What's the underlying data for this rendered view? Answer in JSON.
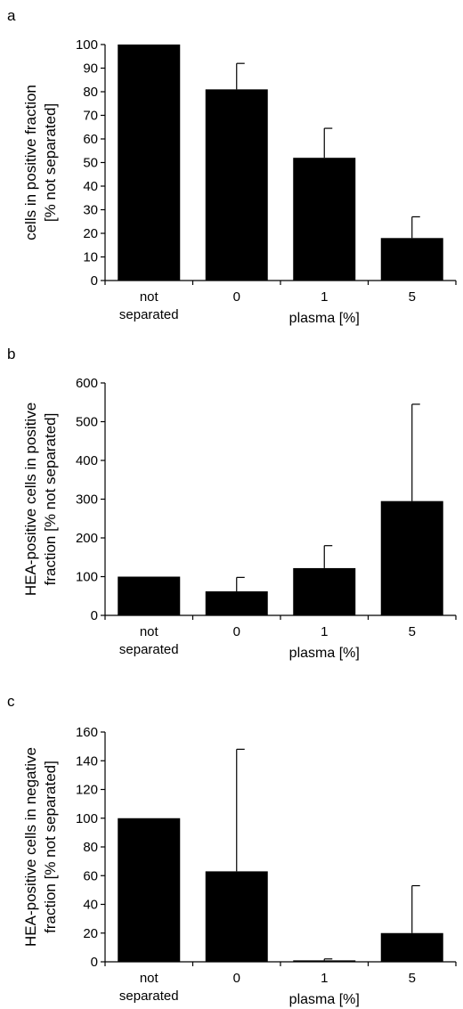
{
  "chart_data": [
    {
      "panel_label": "a",
      "type": "bar",
      "categories": [
        "not\nseparated",
        "0",
        "1",
        "5"
      ],
      "values": [
        100,
        81,
        52,
        18
      ],
      "error_upper": [
        100,
        92,
        64.5,
        27
      ],
      "ylabel": "cells in positive fraction\n[% not separated]",
      "xlabel": "plasma [%]",
      "ylim": [
        0,
        100
      ],
      "yticks": [
        0,
        10,
        20,
        30,
        40,
        50,
        60,
        70,
        80,
        90,
        100
      ],
      "bar_color": "#000000",
      "grid": false,
      "legend": "none"
    },
    {
      "panel_label": "b",
      "type": "bar",
      "categories": [
        "not\nseparated",
        "0",
        "1",
        "5"
      ],
      "values": [
        100,
        62,
        122,
        295
      ],
      "error_upper": [
        100,
        98,
        180,
        545
      ],
      "ylabel": "HEA-positive cells in positive\nfraction [% not separated]",
      "xlabel": "plasma [%]",
      "ylim": [
        0,
        600
      ],
      "yticks": [
        0,
        100,
        200,
        300,
        400,
        500,
        600
      ],
      "bar_color": "#000000",
      "grid": false,
      "legend": "none"
    },
    {
      "panel_label": "c",
      "type": "bar",
      "categories": [
        "not\nseparated",
        "0",
        "1",
        "5"
      ],
      "values": [
        100,
        63,
        1,
        20
      ],
      "error_upper": [
        100,
        148,
        2,
        53
      ],
      "ylabel": "HEA-positive cells in negative\nfraction [% not separated]",
      "xlabel": "plasma [%]",
      "ylim": [
        0,
        160
      ],
      "yticks": [
        0,
        20,
        40,
        60,
        80,
        100,
        120,
        140,
        160
      ],
      "bar_color": "#000000",
      "grid": false,
      "legend": "none"
    }
  ]
}
